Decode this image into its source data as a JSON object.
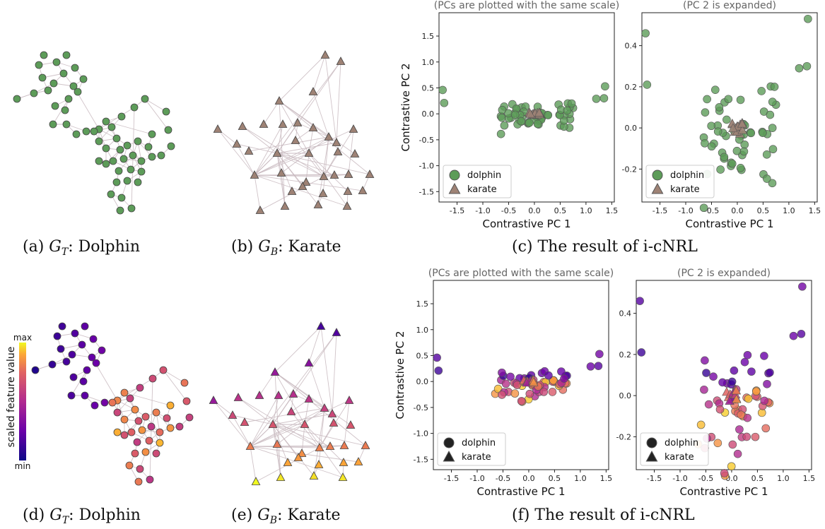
{
  "captions": {
    "a": {
      "prefix": "(a) ",
      "G": "G",
      "sub": "T",
      "rest": ": Dolphin"
    },
    "b": {
      "prefix": "(b) ",
      "G": "G",
      "sub": "B",
      "rest": ": Karate"
    },
    "c": {
      "text": "(c) The result of i-cNRL"
    },
    "d": {
      "prefix": "(d) ",
      "G": "G",
      "sub": "T",
      "rest": ": Dolphin"
    },
    "e": {
      "prefix": "(e) ",
      "G": "G",
      "sub": "B",
      "rest": ": Karate"
    },
    "f": {
      "text": "(f) The result of i-cNRL"
    }
  },
  "colorbar": {
    "label": "scaled feature value",
    "max": "max",
    "min": "min"
  },
  "colors": {
    "dolphin_green": "#5d9c59",
    "karate_brown": "#9e8275",
    "edge": "#c8b8be"
  },
  "scatter_common": {
    "subtitle_left": "(PCs are plotted with the same scale)",
    "subtitle_right": "(PC 2 is expanded)",
    "xlabel": "Contrastive PC 1",
    "ylabel": "Contrastive PC 2",
    "legend": [
      "dolphin",
      "karate"
    ]
  },
  "chart_data": [
    {
      "type": "scatter",
      "panel": "c-left",
      "xlim": [
        -1.85,
        1.55
      ],
      "ylim": [
        -1.7,
        1.95
      ],
      "xticks": [
        "-1.5",
        "-1.0",
        "-0.5",
        "0.0",
        "0.5",
        "1.0",
        "1.5"
      ],
      "yticks": [
        "1.5",
        "1.0",
        "0.5",
        "0.0",
        "-0.5",
        "-1.0",
        "-1.5"
      ],
      "series": [
        {
          "name": "dolphin",
          "marker": "circle"
        },
        {
          "name": "karate",
          "marker": "triangle"
        }
      ]
    },
    {
      "type": "scatter",
      "panel": "c-right",
      "xlim": [
        -1.85,
        1.55
      ],
      "ylim": [
        -0.36,
        0.56
      ],
      "xticks": [
        "-1.5",
        "-1.0",
        "-0.5",
        "0.0",
        "0.5",
        "1.0",
        "1.5"
      ],
      "yticks": [
        "0.4",
        "0.2",
        "0.0",
        "-0.2"
      ],
      "series": [
        {
          "name": "dolphin",
          "marker": "circle"
        },
        {
          "name": "karate",
          "marker": "triangle"
        }
      ]
    },
    {
      "type": "scatter",
      "panel": "f-left",
      "xlim": [
        -1.85,
        1.55
      ],
      "ylim": [
        -1.7,
        1.95
      ],
      "xticks": [
        "-1.5",
        "-1.0",
        "-0.5",
        "0.0",
        "0.5",
        "1.0",
        "1.5"
      ],
      "yticks": [
        "1.5",
        "1.0",
        "0.5",
        "0.0",
        "-0.5",
        "-1.0",
        "-1.5"
      ],
      "series": [
        {
          "name": "dolphin",
          "marker": "circle"
        },
        {
          "name": "karate",
          "marker": "triangle"
        }
      ]
    },
    {
      "type": "scatter",
      "panel": "f-right",
      "xlim": [
        -1.85,
        1.55
      ],
      "ylim": [
        -0.36,
        0.56
      ],
      "xticks": [
        "-1.5",
        "-1.0",
        "-0.5",
        "0.0",
        "0.5",
        "1.0",
        "1.5"
      ],
      "yticks": [
        "0.4",
        "0.2",
        "0.0",
        "-0.2"
      ],
      "series": [
        {
          "name": "dolphin",
          "marker": "circle"
        },
        {
          "name": "karate",
          "marker": "triangle"
        }
      ]
    }
  ]
}
